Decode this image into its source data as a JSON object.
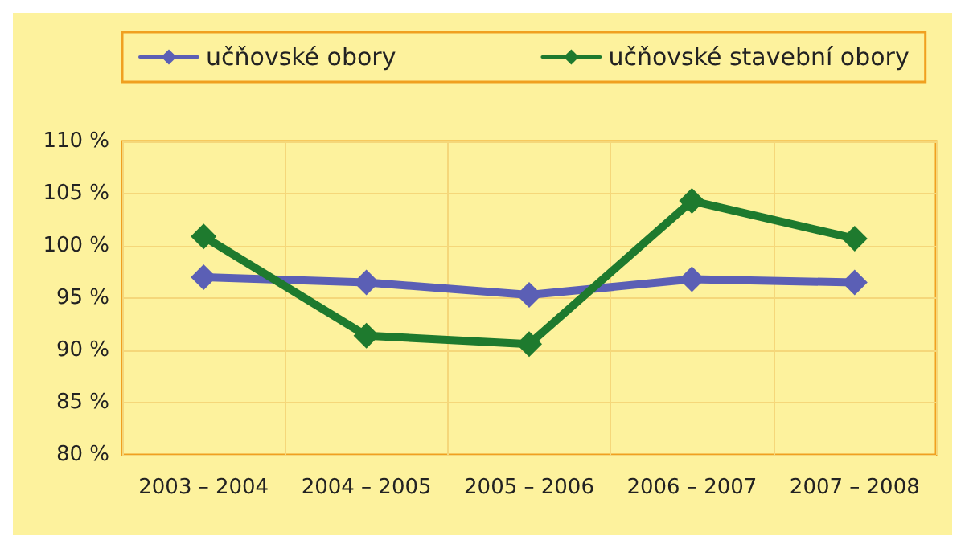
{
  "chart_data": {
    "type": "line",
    "categories": [
      "2003 – 2004",
      "2004 – 2005",
      "2005 – 2006",
      "2006 – 2007",
      "2007 – 2008"
    ],
    "series": [
      {
        "name": "učňovské obory",
        "color": "#5b5fb5",
        "values": [
          97.0,
          96.5,
          95.3,
          96.8,
          96.5
        ]
      },
      {
        "name": "učňovské stavební obory",
        "color": "#1e7a2e",
        "values": [
          100.9,
          91.4,
          90.6,
          104.3,
          100.7
        ]
      }
    ],
    "ylim": [
      80,
      110
    ],
    "yticks": [
      {
        "value": 80,
        "label": "80 %"
      },
      {
        "value": 85,
        "label": "85 %"
      },
      {
        "value": 90,
        "label": "90 %"
      },
      {
        "value": 95,
        "label": "95 %"
      },
      {
        "value": 100,
        "label": "100 %"
      },
      {
        "value": 105,
        "label": "105 %"
      },
      {
        "value": 110,
        "label": "110 %"
      }
    ],
    "grid": true,
    "legend": "top",
    "marker": "diamond",
    "line_style": "solid"
  }
}
